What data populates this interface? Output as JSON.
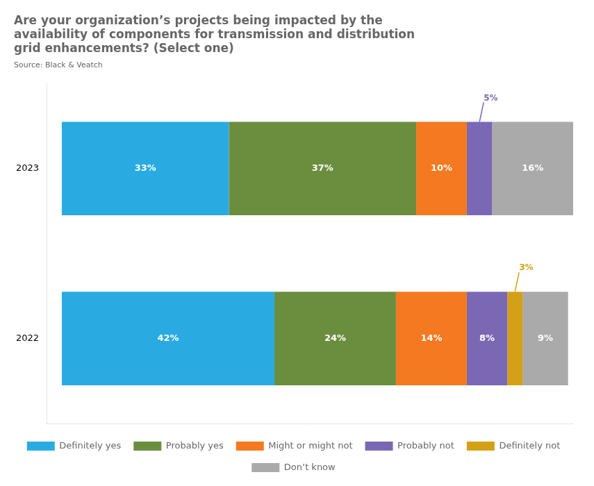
{
  "chart_data": {
    "type": "bar",
    "orientation": "horizontal",
    "stacked": true,
    "title": [
      "Are your organization’s projects being impacted by the",
      "availability of components for transmission and distribution",
      "grid enhancements? (Select one)"
    ],
    "subtitle": "Source: Black & Veatch",
    "categories": [
      "2023",
      "2022"
    ],
    "series": [
      {
        "name": "Definitely yes",
        "color": "#29ABE2",
        "values": [
          33,
          42
        ],
        "value_labels": [
          "33%",
          "42%"
        ]
      },
      {
        "name": "Probably yes",
        "color": "#6B8E3E",
        "values": [
          37,
          24
        ],
        "value_labels": [
          "37%",
          "24%"
        ]
      },
      {
        "name": "Might or might not",
        "color": "#F47920",
        "values": [
          10,
          14
        ],
        "value_labels": [
          "10%",
          "14%"
        ]
      },
      {
        "name": "Probably not",
        "color": "#7B68B5",
        "values": [
          5,
          8
        ],
        "value_labels": [
          null,
          "8%"
        ]
      },
      {
        "name": "Definitely not",
        "color": "#D4A017",
        "values": [
          0,
          3
        ],
        "value_labels": [
          null,
          null
        ]
      },
      {
        "name": "Don’t know",
        "color": "#AAAAAA",
        "values": [
          16,
          9
        ],
        "value_labels": [
          "16%",
          "9%"
        ]
      }
    ],
    "annotations": [
      {
        "text": "5%",
        "series": "Probably not",
        "category": "2023"
      },
      {
        "text": "3%",
        "series": "Definitely not",
        "category": "2022"
      }
    ],
    "data_labels": true,
    "xlim": [
      -3,
      101
    ],
    "tick_labels": "y",
    "grid": false,
    "legend": "bottom"
  }
}
